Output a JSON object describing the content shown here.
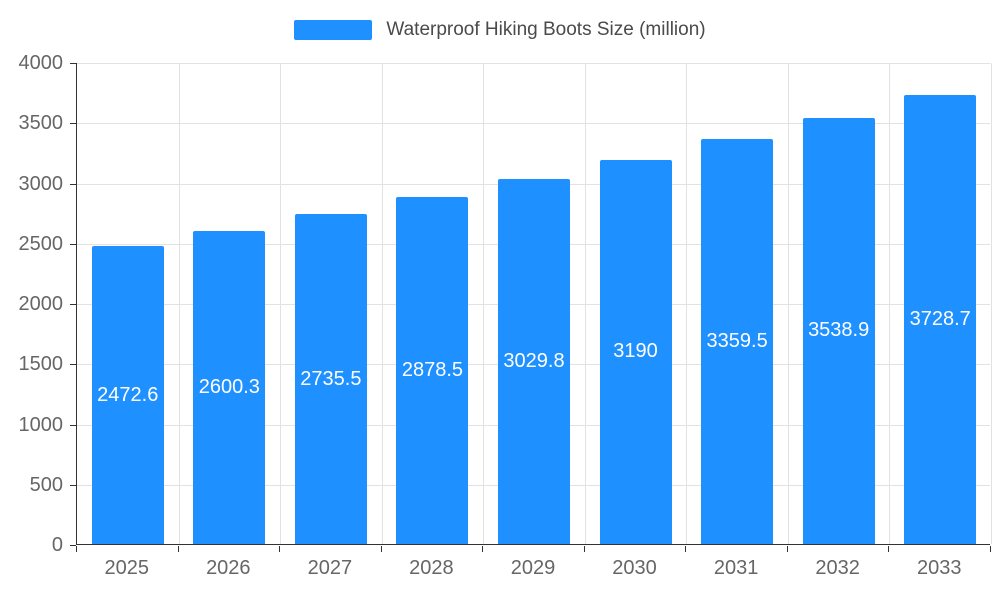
{
  "chart_data": {
    "type": "bar",
    "title": "Waterproof Hiking Boots Size (million)",
    "categories": [
      "2025",
      "2026",
      "2027",
      "2028",
      "2029",
      "2030",
      "2031",
      "2032",
      "2033"
    ],
    "values": [
      2472.6,
      2600.3,
      2735.5,
      2878.5,
      3029.8,
      3190,
      3359.5,
      3538.9,
      3728.7
    ],
    "value_labels": [
      "2472.6",
      "2600.3",
      "2735.5",
      "2878.5",
      "3029.8",
      "3190",
      "3359.5",
      "3538.9",
      "3728.7"
    ],
    "xlabel": "",
    "ylabel": "",
    "ylim": [
      0,
      4000
    ],
    "ytick_step": 500,
    "ytick_labels": [
      "0",
      "500",
      "1000",
      "1500",
      "2000",
      "2500",
      "3000",
      "3500",
      "4000"
    ],
    "grid": true,
    "legend_position": "top",
    "colors": {
      "bar": "#1E90FF",
      "bar_label": "#ffffff",
      "grid": "#e2e2e2",
      "axis": "#333333",
      "tick_label": "#666666",
      "title": "#4a4a4a",
      "background": "#ffffff"
    }
  }
}
